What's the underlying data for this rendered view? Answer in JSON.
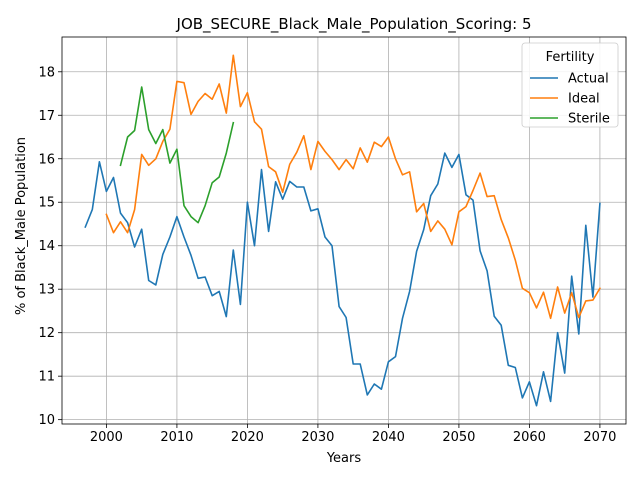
{
  "chart_data": {
    "type": "line",
    "title": "JOB_SECURE_Black_Male_Population_Scoring: 5",
    "xlabel": "Years",
    "ylabel": "% of Black_Male Population",
    "xlim": [
      1993.7,
      2073.7
    ],
    "ylim": [
      9.9,
      18.8
    ],
    "xticks": [
      2000,
      2010,
      2020,
      2030,
      2040,
      2050,
      2060,
      2070
    ],
    "yticks": [
      10,
      11,
      12,
      13,
      14,
      15,
      16,
      17,
      18
    ],
    "grid": true,
    "legend": {
      "title": "Fertility",
      "placement": "top-right"
    },
    "series": [
      {
        "name": "Actual",
        "color": "#1f77b4",
        "x": [
          1997,
          1998,
          1999,
          2000,
          2001,
          2002,
          2003,
          2004,
          2005,
          2006,
          2007,
          2008,
          2009,
          2010,
          2011,
          2012,
          2013,
          2014,
          2015,
          2016,
          2017,
          2018,
          2019,
          2020,
          2021,
          2022,
          2023,
          2024,
          2025,
          2026,
          2027,
          2028,
          2029,
          2030,
          2031,
          2032,
          2033,
          2034,
          2035,
          2036,
          2037,
          2038,
          2039,
          2040,
          2041,
          2042,
          2043,
          2044,
          2045,
          2046,
          2047,
          2048,
          2049,
          2050,
          2051,
          2052,
          2053,
          2054,
          2055,
          2056,
          2057,
          2058,
          2059,
          2060,
          2061,
          2062,
          2063,
          2064,
          2065,
          2066,
          2067,
          2068,
          2069,
          2070
        ],
        "y": [
          14.43,
          14.83,
          15.93,
          15.25,
          15.57,
          14.75,
          14.53,
          13.97,
          14.38,
          13.2,
          13.1,
          13.8,
          14.2,
          14.67,
          14.2,
          13.78,
          13.25,
          13.28,
          12.85,
          12.95,
          12.37,
          13.9,
          12.65,
          15.0,
          14.0,
          15.75,
          14.33,
          15.47,
          15.07,
          15.48,
          15.35,
          15.35,
          14.8,
          14.85,
          14.2,
          14.0,
          12.6,
          12.35,
          11.28,
          11.28,
          10.57,
          10.82,
          10.7,
          11.33,
          11.45,
          12.33,
          12.95,
          13.87,
          14.37,
          15.15,
          15.42,
          16.13,
          15.8,
          16.1,
          15.17,
          15.05,
          13.88,
          13.42,
          12.38,
          12.17,
          11.25,
          11.2,
          10.5,
          10.87,
          10.32,
          11.1,
          10.42,
          12.0,
          11.07,
          13.3,
          11.97,
          14.47,
          12.82,
          14.97
        ]
      },
      {
        "name": "Ideal",
        "color": "#ff7f0e",
        "x": [
          2000,
          2001,
          2002,
          2003,
          2004,
          2005,
          2006,
          2007,
          2008,
          2009,
          2010,
          2011,
          2012,
          2013,
          2014,
          2015,
          2016,
          2017,
          2018,
          2019,
          2020,
          2021,
          2022,
          2023,
          2024,
          2025,
          2026,
          2027,
          2028,
          2029,
          2030,
          2031,
          2032,
          2033,
          2034,
          2035,
          2036,
          2037,
          2038,
          2039,
          2040,
          2041,
          2042,
          2043,
          2044,
          2045,
          2046,
          2047,
          2048,
          2049,
          2050,
          2051,
          2052,
          2053,
          2054,
          2055,
          2056,
          2057,
          2058,
          2059,
          2060,
          2061,
          2062,
          2063,
          2064,
          2065,
          2066,
          2067,
          2068,
          2069,
          2070
        ],
        "y": [
          14.72,
          14.3,
          14.55,
          14.3,
          14.83,
          16.1,
          15.85,
          16.0,
          16.4,
          16.68,
          17.78,
          17.75,
          17.02,
          17.32,
          17.5,
          17.37,
          17.72,
          17.05,
          18.38,
          17.2,
          17.52,
          16.85,
          16.68,
          15.82,
          15.7,
          15.23,
          15.87,
          16.15,
          16.53,
          15.75,
          16.4,
          16.17,
          15.98,
          15.75,
          15.98,
          15.77,
          16.25,
          15.92,
          16.38,
          16.28,
          16.5,
          16.0,
          15.63,
          15.7,
          14.78,
          14.97,
          14.33,
          14.57,
          14.38,
          14.02,
          14.78,
          14.9,
          15.27,
          15.67,
          15.13,
          15.15,
          14.6,
          14.18,
          13.67,
          13.02,
          12.92,
          12.57,
          12.93,
          12.33,
          13.05,
          12.45,
          12.92,
          12.35,
          12.73,
          12.75,
          13.02
        ]
      },
      {
        "name": "Sterile",
        "color": "#2ca02c",
        "x": [
          2002,
          2003,
          2004,
          2005,
          2006,
          2007,
          2008,
          2009,
          2010,
          2011,
          2012,
          2013,
          2014,
          2015,
          2016,
          2017,
          2018
        ],
        "y": [
          15.85,
          16.5,
          16.65,
          17.65,
          16.67,
          16.35,
          16.67,
          15.9,
          16.22,
          14.92,
          14.67,
          14.53,
          14.92,
          15.45,
          15.58,
          16.13,
          16.83
        ]
      }
    ]
  }
}
